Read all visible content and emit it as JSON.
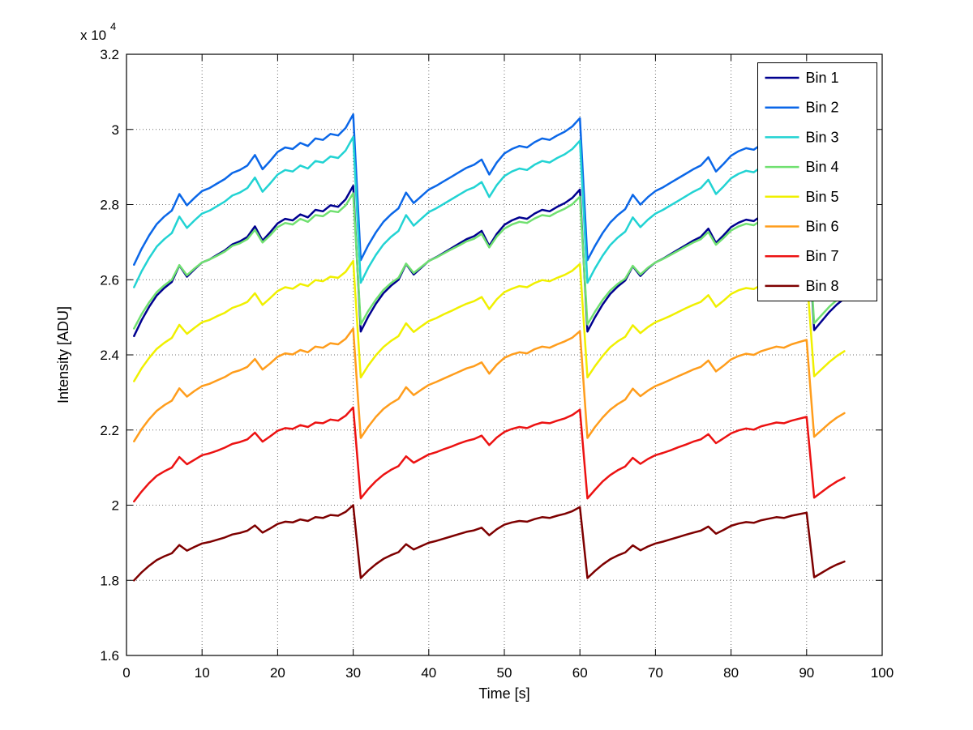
{
  "figure": {
    "background": "#ffffff"
  },
  "chart_data": {
    "type": "line",
    "title": "",
    "xlabel": "Time [s]",
    "ylabel": "Intensity [ADU]",
    "y_multiplier": {
      "base": "x 10",
      "exp": "4"
    },
    "y_unit_note": "y values expressed in units of 10^4 ADU",
    "xlim": [
      0,
      100
    ],
    "ylim": [
      1.6,
      3.2
    ],
    "x_ticks": [
      0,
      10,
      20,
      30,
      40,
      50,
      60,
      70,
      80,
      90,
      100
    ],
    "x_tick_labels": [
      "0",
      "10",
      "20",
      "30",
      "40",
      "50",
      "60",
      "70",
      "80",
      "90",
      "100"
    ],
    "y_ticks": [
      1.6,
      1.8,
      2.0,
      2.2,
      2.4,
      2.6,
      2.8,
      3.0,
      3.2
    ],
    "y_tick_labels": [
      "1.6",
      "1.8",
      "2",
      "2.2",
      "2.4",
      "2.6",
      "2.8",
      "3",
      "3.2"
    ],
    "grid": true,
    "grid_style": "dotted",
    "legend_position": "top-right",
    "x": [
      1,
      2,
      3,
      4,
      5,
      6,
      7,
      8,
      9,
      10,
      11,
      12,
      13,
      14,
      15,
      16,
      17,
      18,
      19,
      20,
      21,
      22,
      23,
      24,
      25,
      26,
      27,
      28,
      29,
      30,
      31,
      32,
      33,
      34,
      35,
      36,
      37,
      38,
      39,
      40,
      41,
      42,
      43,
      44,
      45,
      46,
      47,
      48,
      49,
      50,
      51,
      52,
      53,
      54,
      55,
      56,
      57,
      58,
      59,
      60,
      61,
      62,
      63,
      64,
      65,
      66,
      67,
      68,
      69,
      70,
      71,
      72,
      73,
      74,
      75,
      76,
      77,
      78,
      79,
      80,
      81,
      82,
      83,
      84,
      85,
      86,
      87,
      88,
      89,
      90,
      91,
      92,
      93,
      94,
      95
    ],
    "series": [
      {
        "name": "Bin 1",
        "color": "#00008F",
        "values": [
          2.45,
          2.492,
          2.528,
          2.558,
          2.578,
          2.594,
          2.638,
          2.608,
          2.628,
          2.646,
          2.654,
          2.666,
          2.678,
          2.694,
          2.702,
          2.714,
          2.742,
          2.704,
          2.726,
          2.75,
          2.762,
          2.758,
          2.774,
          2.766,
          2.786,
          2.782,
          2.798,
          2.794,
          2.814,
          2.85,
          2.462,
          2.502,
          2.536,
          2.564,
          2.584,
          2.6,
          2.642,
          2.614,
          2.632,
          2.65,
          2.66,
          2.672,
          2.684,
          2.696,
          2.708,
          2.716,
          2.73,
          2.69,
          2.722,
          2.746,
          2.758,
          2.766,
          2.762,
          2.776,
          2.786,
          2.782,
          2.794,
          2.804,
          2.818,
          2.84,
          2.462,
          2.5,
          2.534,
          2.562,
          2.582,
          2.598,
          2.636,
          2.61,
          2.63,
          2.646,
          2.656,
          2.668,
          2.68,
          2.692,
          2.704,
          2.714,
          2.736,
          2.698,
          2.718,
          2.74,
          2.752,
          2.76,
          2.756,
          2.77,
          2.778,
          2.786,
          2.782,
          2.794,
          2.802,
          2.81,
          2.466,
          2.49,
          2.514,
          2.534,
          2.55
        ]
      },
      {
        "name": "Bin 2",
        "color": "#0B67E8",
        "values": [
          2.64,
          2.682,
          2.718,
          2.748,
          2.768,
          2.784,
          2.828,
          2.798,
          2.818,
          2.836,
          2.844,
          2.856,
          2.868,
          2.884,
          2.892,
          2.904,
          2.932,
          2.894,
          2.916,
          2.94,
          2.952,
          2.948,
          2.964,
          2.956,
          2.976,
          2.972,
          2.988,
          2.984,
          3.004,
          3.04,
          2.652,
          2.692,
          2.726,
          2.754,
          2.774,
          2.79,
          2.832,
          2.804,
          2.822,
          2.84,
          2.85,
          2.862,
          2.874,
          2.886,
          2.898,
          2.906,
          2.92,
          2.88,
          2.912,
          2.936,
          2.948,
          2.956,
          2.952,
          2.966,
          2.976,
          2.972,
          2.984,
          2.994,
          3.008,
          3.03,
          2.652,
          2.69,
          2.724,
          2.752,
          2.772,
          2.788,
          2.826,
          2.8,
          2.82,
          2.836,
          2.846,
          2.858,
          2.87,
          2.882,
          2.894,
          2.904,
          2.926,
          2.888,
          2.908,
          2.93,
          2.942,
          2.95,
          2.946,
          2.96,
          2.968,
          2.976,
          2.972,
          2.984,
          2.992,
          3.0,
          2.656,
          2.68,
          2.704,
          2.724,
          2.74
        ]
      },
      {
        "name": "Bin 3",
        "color": "#22D3D3",
        "values": [
          2.58,
          2.622,
          2.658,
          2.688,
          2.708,
          2.724,
          2.768,
          2.738,
          2.758,
          2.776,
          2.784,
          2.796,
          2.808,
          2.824,
          2.832,
          2.844,
          2.872,
          2.834,
          2.856,
          2.88,
          2.892,
          2.888,
          2.904,
          2.896,
          2.916,
          2.912,
          2.928,
          2.924,
          2.944,
          2.98,
          2.592,
          2.632,
          2.666,
          2.694,
          2.714,
          2.73,
          2.772,
          2.744,
          2.762,
          2.78,
          2.79,
          2.802,
          2.814,
          2.826,
          2.838,
          2.846,
          2.86,
          2.82,
          2.852,
          2.876,
          2.888,
          2.896,
          2.892,
          2.906,
          2.916,
          2.912,
          2.924,
          2.934,
          2.948,
          2.97,
          2.592,
          2.63,
          2.664,
          2.692,
          2.712,
          2.728,
          2.766,
          2.74,
          2.76,
          2.776,
          2.786,
          2.798,
          2.81,
          2.822,
          2.834,
          2.844,
          2.866,
          2.828,
          2.848,
          2.87,
          2.882,
          2.89,
          2.886,
          2.9,
          2.908,
          2.916,
          2.912,
          2.924,
          2.932,
          2.94,
          2.596,
          2.62,
          2.644,
          2.664,
          2.68
        ]
      },
      {
        "name": "Bin 4",
        "color": "#70E070",
        "values": [
          2.47,
          2.508,
          2.54,
          2.567,
          2.585,
          2.6,
          2.639,
          2.612,
          2.63,
          2.646,
          2.654,
          2.664,
          2.675,
          2.69,
          2.697,
          2.708,
          2.733,
          2.699,
          2.718,
          2.74,
          2.751,
          2.747,
          2.762,
          2.754,
          2.772,
          2.769,
          2.783,
          2.78,
          2.798,
          2.83,
          2.481,
          2.517,
          2.547,
          2.573,
          2.591,
          2.605,
          2.643,
          2.618,
          2.634,
          2.65,
          2.659,
          2.67,
          2.681,
          2.691,
          2.702,
          2.709,
          2.722,
          2.686,
          2.715,
          2.736,
          2.747,
          2.754,
          2.751,
          2.763,
          2.772,
          2.769,
          2.78,
          2.789,
          2.801,
          2.821,
          2.481,
          2.515,
          2.546,
          2.571,
          2.589,
          2.603,
          2.637,
          2.614,
          2.632,
          2.646,
          2.655,
          2.666,
          2.677,
          2.688,
          2.699,
          2.708,
          2.727,
          2.693,
          2.711,
          2.731,
          2.742,
          2.749,
          2.745,
          2.758,
          2.765,
          2.772,
          2.769,
          2.78,
          2.787,
          2.794,
          2.484,
          2.506,
          2.528,
          2.546,
          2.56
        ]
      },
      {
        "name": "Bin 5",
        "color": "#F0F000",
        "values": [
          2.33,
          2.364,
          2.392,
          2.416,
          2.432,
          2.445,
          2.48,
          2.456,
          2.472,
          2.487,
          2.493,
          2.503,
          2.512,
          2.525,
          2.532,
          2.541,
          2.564,
          2.533,
          2.551,
          2.57,
          2.58,
          2.576,
          2.589,
          2.583,
          2.599,
          2.596,
          2.608,
          2.605,
          2.621,
          2.65,
          2.34,
          2.372,
          2.399,
          2.421,
          2.437,
          2.45,
          2.484,
          2.461,
          2.476,
          2.49,
          2.498,
          2.508,
          2.517,
          2.527,
          2.536,
          2.543,
          2.554,
          2.522,
          2.548,
          2.567,
          2.576,
          2.583,
          2.58,
          2.591,
          2.599,
          2.596,
          2.605,
          2.613,
          2.624,
          2.642,
          2.34,
          2.37,
          2.397,
          2.42,
          2.436,
          2.448,
          2.479,
          2.458,
          2.474,
          2.487,
          2.495,
          2.504,
          2.514,
          2.524,
          2.533,
          2.541,
          2.559,
          2.528,
          2.544,
          2.562,
          2.572,
          2.578,
          2.575,
          2.586,
          2.592,
          2.599,
          2.596,
          2.605,
          2.612,
          2.618,
          2.343,
          2.362,
          2.381,
          2.397,
          2.41
        ]
      },
      {
        "name": "Bin 6",
        "color": "#FF9D1C",
        "values": [
          2.17,
          2.202,
          2.229,
          2.251,
          2.266,
          2.278,
          2.311,
          2.289,
          2.304,
          2.317,
          2.323,
          2.332,
          2.341,
          2.353,
          2.359,
          2.368,
          2.389,
          2.361,
          2.377,
          2.395,
          2.404,
          2.401,
          2.413,
          2.407,
          2.422,
          2.419,
          2.431,
          2.428,
          2.443,
          2.47,
          2.179,
          2.209,
          2.235,
          2.256,
          2.271,
          2.283,
          2.314,
          2.293,
          2.307,
          2.32,
          2.328,
          2.337,
          2.346,
          2.355,
          2.364,
          2.37,
          2.38,
          2.35,
          2.374,
          2.392,
          2.401,
          2.407,
          2.404,
          2.415,
          2.422,
          2.419,
          2.428,
          2.436,
          2.446,
          2.463,
          2.179,
          2.208,
          2.233,
          2.254,
          2.269,
          2.281,
          2.31,
          2.29,
          2.305,
          2.317,
          2.325,
          2.334,
          2.343,
          2.352,
          2.361,
          2.368,
          2.385,
          2.356,
          2.371,
          2.388,
          2.397,
          2.403,
          2.4,
          2.41,
          2.416,
          2.422,
          2.419,
          2.428,
          2.434,
          2.44,
          2.182,
          2.2,
          2.218,
          2.233,
          2.245
        ]
      },
      {
        "name": "Bin 7",
        "color": "#EC1212",
        "values": [
          2.01,
          2.036,
          2.059,
          2.078,
          2.09,
          2.1,
          2.128,
          2.109,
          2.121,
          2.133,
          2.138,
          2.145,
          2.153,
          2.163,
          2.168,
          2.175,
          2.193,
          2.169,
          2.183,
          2.198,
          2.205,
          2.203,
          2.213,
          2.208,
          2.22,
          2.218,
          2.228,
          2.225,
          2.238,
          2.26,
          2.018,
          2.043,
          2.064,
          2.081,
          2.094,
          2.104,
          2.13,
          2.113,
          2.124,
          2.135,
          2.141,
          2.149,
          2.156,
          2.164,
          2.171,
          2.176,
          2.185,
          2.16,
          2.18,
          2.195,
          2.203,
          2.208,
          2.205,
          2.214,
          2.22,
          2.218,
          2.225,
          2.231,
          2.24,
          2.254,
          2.018,
          2.041,
          2.063,
          2.08,
          2.093,
          2.103,
          2.126,
          2.11,
          2.123,
          2.133,
          2.139,
          2.146,
          2.154,
          2.161,
          2.169,
          2.175,
          2.189,
          2.165,
          2.178,
          2.191,
          2.199,
          2.204,
          2.201,
          2.21,
          2.215,
          2.22,
          2.218,
          2.225,
          2.23,
          2.235,
          2.02,
          2.035,
          2.05,
          2.063,
          2.073
        ]
      },
      {
        "name": "Bin 8",
        "color": "#7E0000",
        "values": [
          1.8,
          1.821,
          1.839,
          1.854,
          1.864,
          1.872,
          1.894,
          1.879,
          1.889,
          1.898,
          1.902,
          1.908,
          1.914,
          1.922,
          1.926,
          1.932,
          1.946,
          1.927,
          1.938,
          1.95,
          1.956,
          1.954,
          1.962,
          1.958,
          1.968,
          1.966,
          1.974,
          1.972,
          1.982,
          2.0,
          1.806,
          1.826,
          1.843,
          1.857,
          1.867,
          1.875,
          1.896,
          1.882,
          1.891,
          1.9,
          1.905,
          1.911,
          1.917,
          1.923,
          1.929,
          1.933,
          1.94,
          1.92,
          1.936,
          1.948,
          1.954,
          1.958,
          1.956,
          1.963,
          1.968,
          1.966,
          1.972,
          1.977,
          1.984,
          1.995,
          1.806,
          1.825,
          1.842,
          1.856,
          1.866,
          1.874,
          1.893,
          1.88,
          1.89,
          1.898,
          1.903,
          1.909,
          1.915,
          1.921,
          1.927,
          1.932,
          1.943,
          1.924,
          1.934,
          1.945,
          1.951,
          1.955,
          1.953,
          1.96,
          1.964,
          1.968,
          1.966,
          1.972,
          1.976,
          1.98,
          1.808,
          1.82,
          1.832,
          1.842,
          1.85
        ]
      }
    ],
    "legend": {
      "entries": [
        "Bin 1",
        "Bin 2",
        "Bin 3",
        "Bin 4",
        "Bin 5",
        "Bin 6",
        "Bin 7",
        "Bin 8"
      ]
    }
  }
}
